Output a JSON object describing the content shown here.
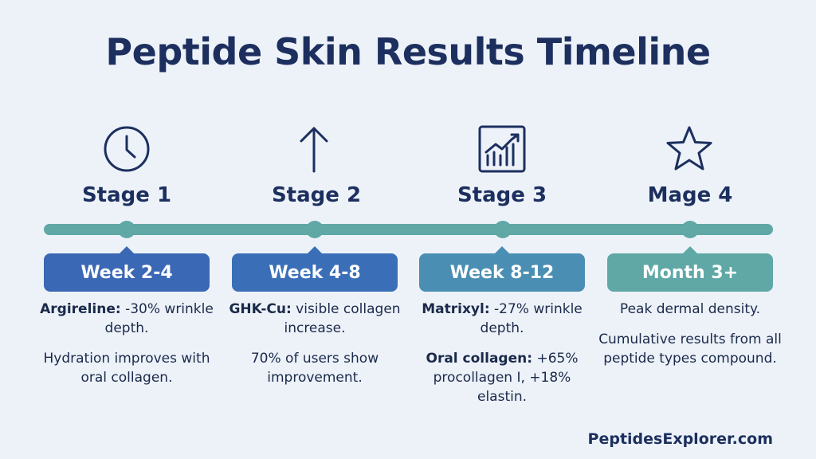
{
  "title": "Peptide Skin Results Timeline",
  "brand": "PeptidesExplorer.com",
  "colors": {
    "line": "#5fa8a6",
    "badge1": "#3a68b5",
    "badge2": "#3a6fb8",
    "badge3": "#4a8fb3",
    "badge4": "#5fa8a6"
  },
  "stages": [
    {
      "icon": "clock-icon",
      "label": "Stage 1",
      "period": "Week 2-4",
      "p1_bold": "Argireline:",
      "p1_text": " -30% wrinkle depth.",
      "p2_bold": "",
      "p2_text": "Hydration improves with oral collagen."
    },
    {
      "icon": "arrow-up-icon",
      "label": "Stage 2",
      "period": "Week 4-8",
      "p1_bold": "GHK-Cu:",
      "p1_text": " visible collagen increase.",
      "p2_bold": "",
      "p2_text": "70% of users show improvement."
    },
    {
      "icon": "chart-trend-icon",
      "label": "Stage 3",
      "period": "Week 8-12",
      "p1_bold": "Matrixyl:",
      "p1_text": " -27% wrinkle depth.",
      "p2_bold": "Oral collagen:",
      "p2_text": " +65% procollagen I, +18% elastin."
    },
    {
      "icon": "star-icon",
      "label": "Mage 4",
      "period": "Month 3+",
      "p1_bold": "",
      "p1_text": "Peak dermal density.",
      "p2_bold": "",
      "p2_text": "Cumulative results from all peptide types compound."
    }
  ]
}
